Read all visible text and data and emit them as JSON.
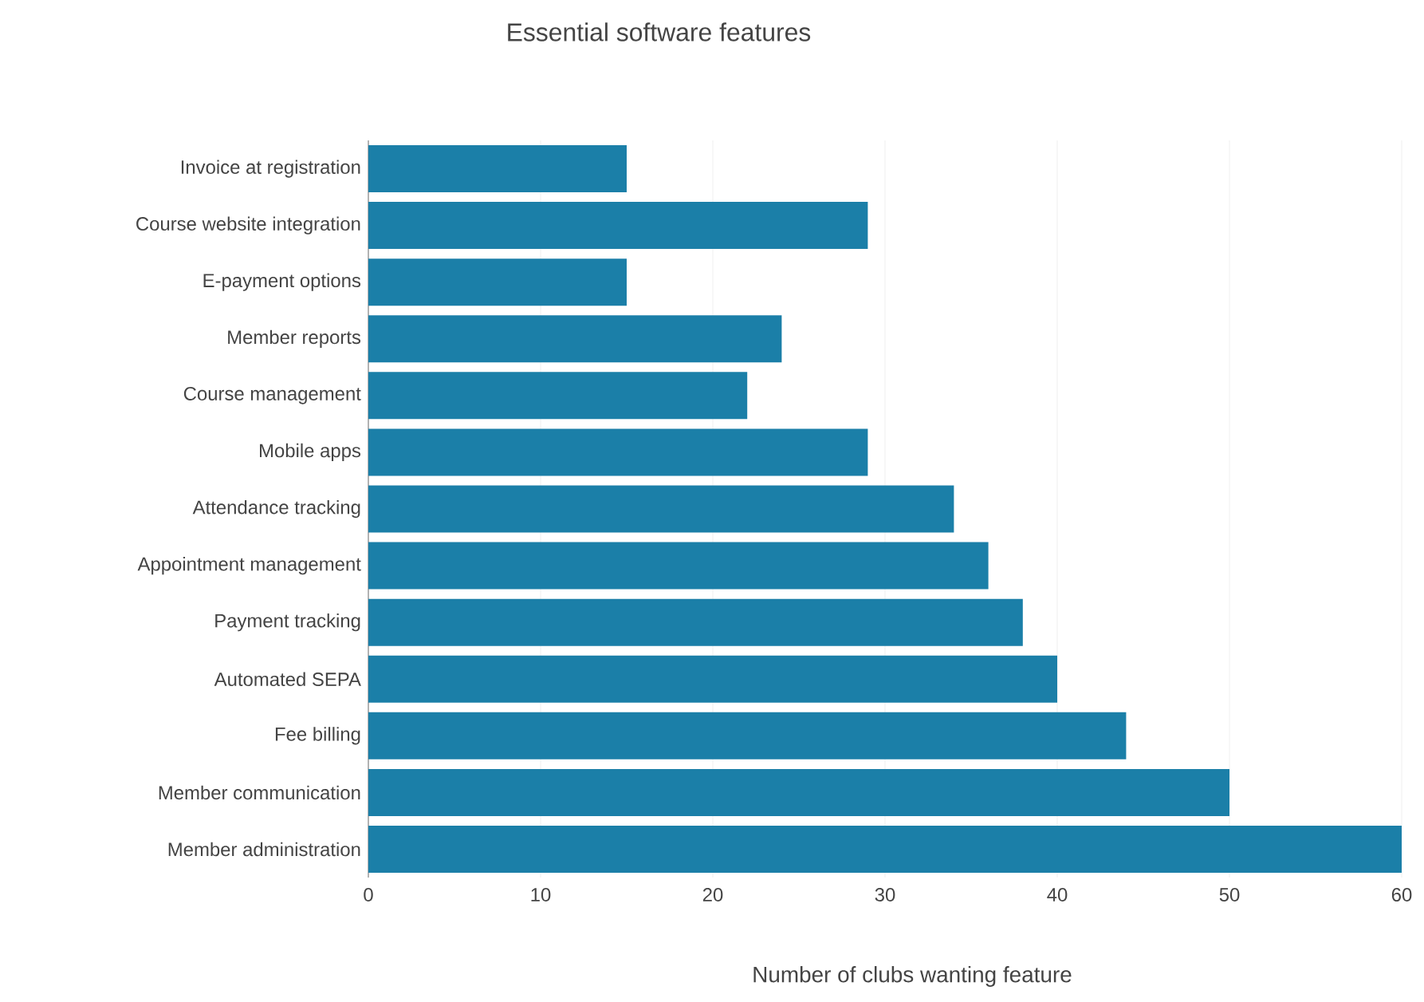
{
  "chart_data": {
    "type": "bar",
    "orientation": "horizontal",
    "title": "Essential software features",
    "xlabel": "Number of clubs wanting feature",
    "categories": [
      "Invoice at registration",
      "Course website integration",
      "E-payment options",
      "Member reports",
      "Course management",
      "Mobile apps",
      "Attendance tracking",
      "Appointment management",
      "Payment tracking",
      "Automated SEPA",
      "Fee billing",
      "Member communication",
      "Member administration"
    ],
    "values": [
      15,
      29,
      15,
      24,
      22,
      29,
      34,
      36,
      38,
      40,
      44,
      50,
      60
    ],
    "color": "#1b7fa8",
    "xlim": [
      0,
      60
    ],
    "xticks": [
      0,
      10,
      20,
      30,
      40,
      50,
      60
    ],
    "grid": "x"
  }
}
